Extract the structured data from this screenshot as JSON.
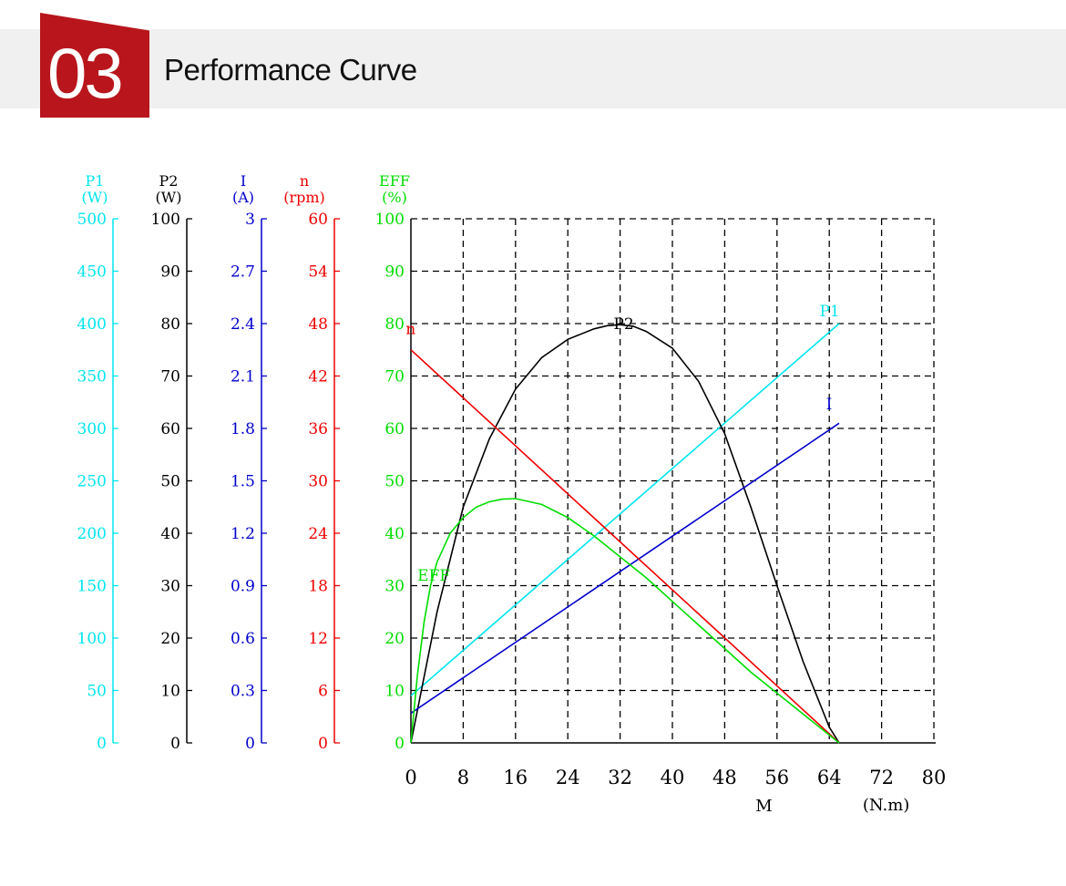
{
  "header": {
    "section_number": "03",
    "section_title": "Performance Curve"
  },
  "chart_data": {
    "type": "line",
    "x_axis": {
      "label_var": "M",
      "label_unit": "(N.m)",
      "ticks": [
        "0",
        "8",
        "16",
        "24",
        "32",
        "40",
        "48",
        "56",
        "64",
        "72",
        "80"
      ],
      "range": [
        0,
        80
      ]
    },
    "grid": true,
    "y_axes": [
      {
        "key": "P1",
        "title": "P1",
        "unit": "(W)",
        "color": "#00e5ee",
        "range": [
          0,
          500
        ],
        "ticks": [
          "0",
          "50",
          "100",
          "150",
          "200",
          "250",
          "300",
          "350",
          "400",
          "450",
          "500"
        ]
      },
      {
        "key": "P2",
        "title": "P2",
        "unit": "(W)",
        "color": "#000000",
        "range": [
          0,
          100
        ],
        "ticks": [
          "0",
          "10",
          "20",
          "30",
          "40",
          "50",
          "60",
          "70",
          "80",
          "90",
          "100"
        ]
      },
      {
        "key": "I",
        "title": "I",
        "unit": "(A)",
        "color": "#0000cc",
        "range": [
          0,
          3
        ],
        "ticks": [
          "0",
          "0.3",
          "0.6",
          "0.9",
          "1.2",
          "1.5",
          "1.8",
          "2.1",
          "2.4",
          "2.7",
          "3"
        ]
      },
      {
        "key": "n",
        "title": "n",
        "unit": "(rpm)",
        "color": "#ee0000",
        "range": [
          0,
          60
        ],
        "ticks": [
          "0",
          "6",
          "12",
          "18",
          "24",
          "30",
          "36",
          "42",
          "48",
          "54",
          "60"
        ]
      },
      {
        "key": "EFF",
        "title": "EFF",
        "unit": "(%)",
        "color": "#00dd00",
        "range": [
          0,
          100
        ],
        "ticks": [
          "0",
          "10",
          "20",
          "30",
          "40",
          "50",
          "60",
          "70",
          "80",
          "90",
          "100"
        ]
      }
    ],
    "series": [
      {
        "name": "P1",
        "axis": "P1",
        "color": "#00e5ee",
        "label_at": [
          62.5,
          407
        ],
        "points": [
          [
            0,
            45
          ],
          [
            65.5,
            400
          ]
        ]
      },
      {
        "name": "P2",
        "axis": "P2",
        "color": "#000000",
        "label_at": [
          31,
          79
        ],
        "points": [
          [
            0,
            0
          ],
          [
            4,
            25
          ],
          [
            8,
            45
          ],
          [
            12,
            58
          ],
          [
            16,
            67.5
          ],
          [
            20,
            73.5
          ],
          [
            24,
            77
          ],
          [
            28,
            79
          ],
          [
            30,
            79.6
          ],
          [
            32,
            79.8
          ],
          [
            34,
            79.5
          ],
          [
            36,
            78.5
          ],
          [
            40,
            75.3
          ],
          [
            44,
            69
          ],
          [
            48,
            59
          ],
          [
            52,
            45
          ],
          [
            56,
            30
          ],
          [
            60,
            15.5
          ],
          [
            64,
            3
          ],
          [
            65.5,
            0
          ]
        ]
      },
      {
        "name": "I",
        "axis": "I",
        "color": "#0000cc",
        "label_at": [
          63.5,
          1.91
        ],
        "points": [
          [
            0,
            0.17
          ],
          [
            65.5,
            1.83
          ]
        ]
      },
      {
        "name": "n",
        "axis": "n",
        "color": "#ee0000",
        "label_at": [
          -0.8,
          46.8
        ],
        "points": [
          [
            0,
            45
          ],
          [
            65.5,
            0
          ]
        ]
      },
      {
        "name": "EFF",
        "axis": "EFF",
        "color": "#00dd00",
        "label_at": [
          1,
          31
        ],
        "points": [
          [
            0,
            0
          ],
          [
            1,
            13
          ],
          [
            2,
            23
          ],
          [
            3,
            30
          ],
          [
            4,
            34.5
          ],
          [
            6,
            40
          ],
          [
            8,
            43
          ],
          [
            10,
            45
          ],
          [
            12,
            46
          ],
          [
            14,
            46.5
          ],
          [
            16,
            46.6
          ],
          [
            20,
            45.5
          ],
          [
            24,
            43
          ],
          [
            28,
            39.5
          ],
          [
            32,
            35.5
          ],
          [
            36,
            31.5
          ],
          [
            40,
            27
          ],
          [
            44,
            22.5
          ],
          [
            48,
            18
          ],
          [
            52,
            13.5
          ],
          [
            56,
            9.5
          ],
          [
            60,
            5.5
          ],
          [
            65.5,
            0
          ]
        ]
      }
    ]
  }
}
